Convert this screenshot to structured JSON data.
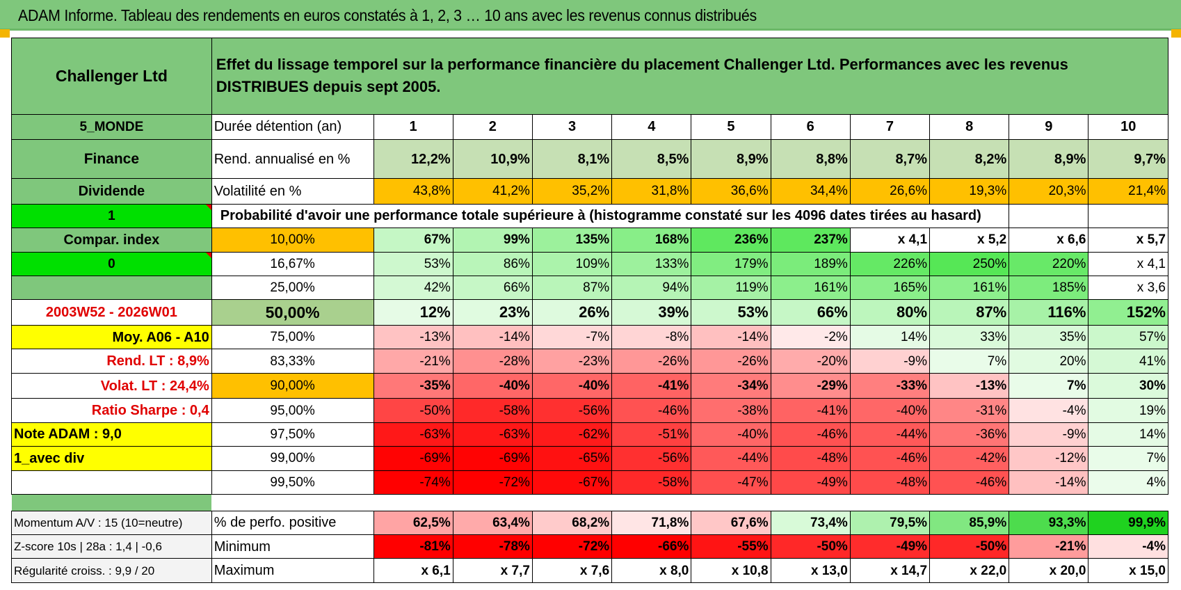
{
  "title": "ADAM Informe. Tableau des rendements en euros constatés à 1, 2, 3 … 10 ans avec les revenus connus distribués",
  "header": {
    "fund": "Challenger Ltd",
    "description": "Effet du lissage temporel sur la performance financière du placement Challenger Ltd. Performances avec les revenus DISTRIBUES depuis sept 2005."
  },
  "side": {
    "zone": "5_MONDE",
    "sector": "Finance",
    "type": "Dividende",
    "flag1": "1",
    "compar_label": "Compar. index",
    "flag0": "0",
    "period": "2003W52 - 2026W01",
    "moy": "Moy. A06 - A10",
    "rend_lt": "Rend. LT :   8,9%",
    "volat_lt": "Volat. LT :   24,4%",
    "sharpe": "Ratio Sharpe :    0,4",
    "note": "Note ADAM : 9,0",
    "avec_div": "1_avec div"
  },
  "durations_label": "Durée détention (an)",
  "durations": [
    "1",
    "2",
    "3",
    "4",
    "5",
    "6",
    "7",
    "8",
    "9",
    "10"
  ],
  "rend_label": "Rend. annualisé en %",
  "rend": [
    "12,2%",
    "10,9%",
    "8,1%",
    "8,5%",
    "8,9%",
    "8,8%",
    "8,7%",
    "8,2%",
    "8,9%",
    "9,7%"
  ],
  "vol_label": "Volatilité en %",
  "vol": [
    "43,8%",
    "41,2%",
    "35,2%",
    "31,8%",
    "36,6%",
    "34,4%",
    "26,6%",
    "19,3%",
    "20,3%",
    "21,4%"
  ],
  "proba_label": "Probabilité d'avoir une performance totale supérieure à (histogramme constaté sur les 4096 dates tirées au hasard)",
  "proba_rows": [
    {
      "pct": "10,00%",
      "vals": [
        "67%",
        "99%",
        "135%",
        "168%",
        "236%",
        "237%",
        "x 4,1",
        "x 5,2",
        "x 6,6",
        "x 5,7"
      ]
    },
    {
      "pct": "16,67%",
      "vals": [
        "53%",
        "86%",
        "109%",
        "133%",
        "179%",
        "189%",
        "226%",
        "250%",
        "220%",
        "x 4,1"
      ]
    },
    {
      "pct": "25,00%",
      "vals": [
        "42%",
        "66%",
        "87%",
        "94%",
        "119%",
        "161%",
        "165%",
        "161%",
        "185%",
        "x 3,6"
      ]
    },
    {
      "pct": "50,00%",
      "vals": [
        "12%",
        "23%",
        "26%",
        "39%",
        "53%",
        "66%",
        "80%",
        "87%",
        "116%",
        "152%"
      ]
    },
    {
      "pct": "75,00%",
      "vals": [
        "-13%",
        "-14%",
        "-7%",
        "-8%",
        "-14%",
        "-2%",
        "14%",
        "33%",
        "35%",
        "57%"
      ]
    },
    {
      "pct": "83,33%",
      "vals": [
        "-21%",
        "-28%",
        "-23%",
        "-26%",
        "-26%",
        "-20%",
        "-9%",
        "7%",
        "20%",
        "41%"
      ]
    },
    {
      "pct": "90,00%",
      "vals": [
        "-35%",
        "-40%",
        "-40%",
        "-41%",
        "-34%",
        "-29%",
        "-33%",
        "-13%",
        "7%",
        "30%"
      ]
    },
    {
      "pct": "95,00%",
      "vals": [
        "-50%",
        "-58%",
        "-56%",
        "-46%",
        "-38%",
        "-41%",
        "-40%",
        "-31%",
        "-4%",
        "19%"
      ]
    },
    {
      "pct": "97,50%",
      "vals": [
        "-63%",
        "-63%",
        "-62%",
        "-51%",
        "-40%",
        "-46%",
        "-44%",
        "-36%",
        "-9%",
        "14%"
      ]
    },
    {
      "pct": "99,00%",
      "vals": [
        "-69%",
        "-69%",
        "-65%",
        "-56%",
        "-44%",
        "-48%",
        "-46%",
        "-42%",
        "-12%",
        "7%"
      ]
    },
    {
      "pct": "99,50%",
      "vals": [
        "-74%",
        "-72%",
        "-67%",
        "-58%",
        "-47%",
        "-49%",
        "-48%",
        "-46%",
        "-14%",
        "4%"
      ]
    }
  ],
  "bottom": [
    {
      "side": "Momentum A/V : 15 (10=neutre)",
      "label": "% de perfo. positive",
      "vals": [
        "62,5%",
        "63,4%",
        "68,2%",
        "71,8%",
        "67,6%",
        "73,4%",
        "79,5%",
        "85,9%",
        "93,3%",
        "99,9%"
      ]
    },
    {
      "side": "Z-score 10s | 28a : 1,4 | -0,6",
      "label": "Minimum",
      "vals": [
        "-81%",
        "-78%",
        "-72%",
        "-66%",
        "-55%",
        "-50%",
        "-49%",
        "-50%",
        "-21%",
        "-4%"
      ]
    },
    {
      "side": "Régularité croiss. : 9,9 / 20",
      "label": "Maximum",
      "vals": [
        "x 6,1",
        "x 7,7",
        "x 7,6",
        "x 8,0",
        "x 10,8",
        "x 13,0",
        "x 14,7",
        "x 22,0",
        "x 20,0",
        "x 15,0"
      ]
    }
  ],
  "colors": {
    "green_label": "#7fc77c",
    "bright_green": "#00e000",
    "orange": "#ffc000",
    "yellow": "#ffff00",
    "red_text": "#e00000",
    "rend_bg": "#c6e0b4"
  }
}
